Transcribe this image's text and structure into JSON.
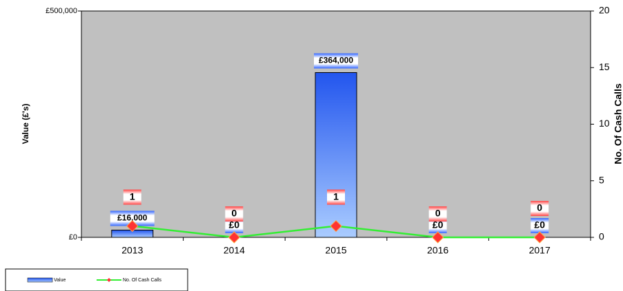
{
  "chart_data": {
    "type": "bar",
    "categories": [
      "2013",
      "2014",
      "2015",
      "2016",
      "2017"
    ],
    "y_label": "Value (£'s)",
    "y2_label": "No. Of Cash Calls",
    "ylim": [
      0,
      500000
    ],
    "yticks": [
      {
        "value": 0,
        "label": "£0"
      },
      {
        "value": 500000,
        "label": "£500,000"
      }
    ],
    "y2lim": [
      0,
      20
    ],
    "y2ticks": [
      0,
      5,
      10,
      15,
      20
    ],
    "legend": "bottom-left",
    "series": [
      {
        "name": "Value",
        "type": "bar",
        "color": "#3366ff",
        "values": [
          16000,
          0,
          364000,
          0,
          0
        ],
        "value_labels": [
          "£16,000",
          "£0",
          "£364,000",
          "£0",
          "£0"
        ]
      },
      {
        "name": "No. Of Cash Calls",
        "type": "line",
        "axis": "y2",
        "color": "#33ee33",
        "marker_color": "#ff3333",
        "values": [
          1,
          0,
          1,
          0,
          0
        ]
      }
    ]
  }
}
